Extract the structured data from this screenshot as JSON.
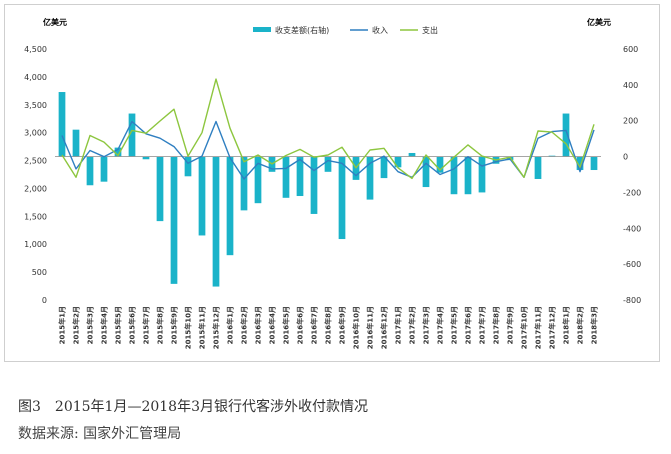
{
  "chart_data": {
    "type": "bar+line",
    "left_unit": "亿美元",
    "right_unit": "亿美元",
    "left_axis": {
      "ylim": [
        0,
        4500
      ],
      "ticks": [
        "0",
        "500",
        "1,000",
        "1,500",
        "2,000",
        "2,500",
        "3,000",
        "3,500",
        "4,000",
        "4,500"
      ]
    },
    "right_axis": {
      "ylim": [
        -800,
        600
      ],
      "ticks": [
        "-800",
        "-600",
        "-400",
        "-200",
        "0",
        "200",
        "400",
        "600"
      ]
    },
    "categories": [
      "2015年1月",
      "2015年2月",
      "2015年3月",
      "2015年4月",
      "2015年5月",
      "2015年6月",
      "2015年7月",
      "2015年8月",
      "2015年9月",
      "2015年10月",
      "2015年11月",
      "2015年12月",
      "2016年1月",
      "2016年2月",
      "2016年3月",
      "2016年4月",
      "2016年5月",
      "2016年6月",
      "2016年7月",
      "2016年8月",
      "2016年9月",
      "2016年10月",
      "2016年11月",
      "2016年12月",
      "2017年1月",
      "2017年2月",
      "2017年3月",
      "2017年4月",
      "2017年5月",
      "2017年6月",
      "2017年7月",
      "2017年8月",
      "2017年9月",
      "2017年10月",
      "2017年11月",
      "2017年12月",
      "2018年1月",
      "2018年2月",
      "2018年3月"
    ],
    "series": [
      {
        "name": "收支差额(右轴)",
        "type": "bar",
        "axis": "right",
        "color": "#1ab3c9",
        "values": [
          360,
          150,
          -160,
          -140,
          50,
          240,
          -15,
          -360,
          -710,
          -110,
          -440,
          -725,
          -550,
          -300,
          -260,
          -85,
          -230,
          -220,
          -320,
          -85,
          -460,
          -130,
          -240,
          -120,
          -60,
          20,
          -170,
          -90,
          -210,
          -210,
          -200,
          -40,
          -20,
          0,
          -125,
          5,
          240,
          -75,
          -75
        ]
      },
      {
        "name": "收入",
        "type": "line",
        "axis": "left",
        "color": "#2f7fc1",
        "values": [
          2950,
          2350,
          2680,
          2570,
          2700,
          3200,
          2980,
          2900,
          2750,
          2450,
          2580,
          3200,
          2550,
          2170,
          2450,
          2350,
          2360,
          2520,
          2320,
          2500,
          2450,
          2230,
          2450,
          2580,
          2300,
          2200,
          2450,
          2250,
          2350,
          2570,
          2400,
          2480,
          2530,
          2200,
          2900,
          3020,
          3040,
          2300,
          3050
        ]
      },
      {
        "name": "支出",
        "type": "line",
        "axis": "left",
        "color": "#8dc63f",
        "values": [
          2600,
          2200,
          2950,
          2830,
          2590,
          3040,
          2990,
          3210,
          3420,
          2580,
          3000,
          3960,
          3080,
          2480,
          2600,
          2440,
          2590,
          2700,
          2560,
          2600,
          2740,
          2370,
          2690,
          2720,
          2370,
          2180,
          2600,
          2330,
          2560,
          2780,
          2580,
          2510,
          2560,
          2200,
          3030,
          3010,
          2800,
          2380,
          3150
        ]
      }
    ],
    "legend_position": "top",
    "grid": false
  },
  "caption": {
    "title": "图3　2015年1月—2018年3月银行代客涉外收付款情况",
    "source": "数据来源: 国家外汇管理局"
  }
}
